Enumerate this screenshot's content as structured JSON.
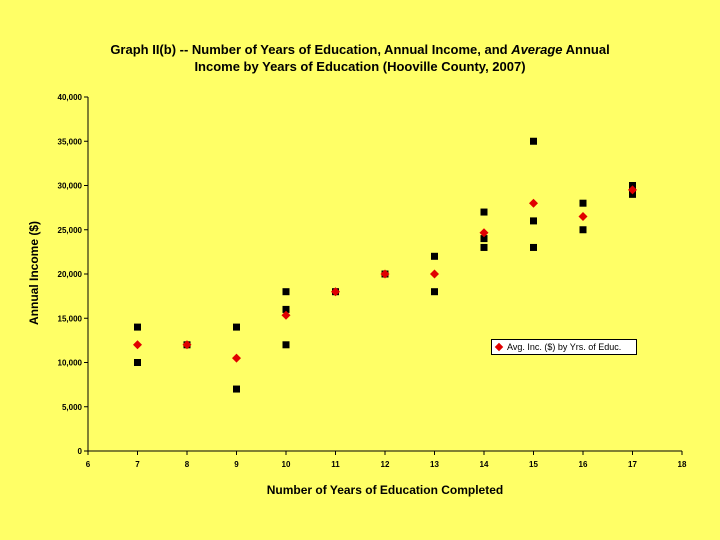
{
  "chart_data": {
    "type": "scatter",
    "title_line1_a": "Graph II(b) -- Number of Years of Education, Annual Income, and ",
    "title_line1_em": "Average",
    "title_line1_b": " Annual",
    "title_line2": "Income by Years of Education (Hooville County, 2007)",
    "xlabel": "Number of Years of Education Completed",
    "ylabel": "Annual Income ($)",
    "xlim": [
      6,
      18
    ],
    "ylim": [
      0,
      40000
    ],
    "x_ticks": [
      "6",
      "7",
      "8",
      "9",
      "10",
      "11",
      "12",
      "13",
      "14",
      "15",
      "16",
      "17",
      "18"
    ],
    "y_ticks": [
      "0",
      "5,000",
      "10,000",
      "15,000",
      "20,000",
      "25,000",
      "30,000",
      "35,000",
      "40,000"
    ],
    "grid": false,
    "legend_position": "right",
    "series": [
      {
        "marker": "square",
        "color": "#000000",
        "points": [
          [
            7,
            14000
          ],
          [
            7,
            10000
          ],
          [
            8,
            12000
          ],
          [
            9,
            14000
          ],
          [
            9,
            7000
          ],
          [
            10,
            18000
          ],
          [
            10,
            16000
          ],
          [
            10,
            12000
          ],
          [
            11,
            18000
          ],
          [
            12,
            20000
          ],
          [
            13,
            22000
          ],
          [
            13,
            18000
          ],
          [
            14,
            27000
          ],
          [
            14,
            24000
          ],
          [
            14,
            23000
          ],
          [
            15,
            35000
          ],
          [
            15,
            26000
          ],
          [
            15,
            23000
          ],
          [
            16,
            28000
          ],
          [
            16,
            25000
          ],
          [
            17,
            30000
          ],
          [
            17,
            29000
          ]
        ]
      },
      {
        "name": "Avg. Inc. ($) by Yrs. of Educ.",
        "marker": "diamond",
        "color": "#E00000",
        "points": [
          [
            7,
            12000
          ],
          [
            8,
            12000
          ],
          [
            9,
            10500
          ],
          [
            10,
            15333
          ],
          [
            11,
            18000
          ],
          [
            12,
            20000
          ],
          [
            13,
            20000
          ],
          [
            14,
            24667
          ],
          [
            15,
            28000
          ],
          [
            16,
            26500
          ],
          [
            17,
            29500
          ]
        ]
      }
    ]
  }
}
